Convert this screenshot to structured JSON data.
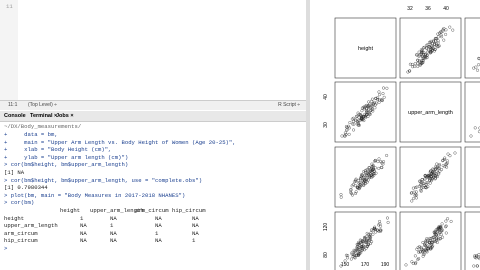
{
  "editor": {
    "line_number": "11"
  },
  "status_bar": {
    "position": "11:1",
    "scope": "(Top Level) ÷",
    "file_type": "R Script ÷"
  },
  "console": {
    "tabs": [
      "Console",
      "Terminal ×",
      "Jobs ×"
    ],
    "path": "~/DX/Body_measurements/",
    "lines": [
      "+     data = bm,",
      "+     main = \"Upper Arm Length vs. Body Height of Women (Age 20-25)\",",
      "+     xlab = \"Body Height (cm)\",",
      "+     ylab = \"Upper arm length (cm)\")",
      "> cor(bm$height, bm$upper_arm_length)",
      "[1] NA",
      "> cor(bm$height, bm$upper_arm_length, use = \"complete.obs\")",
      "[1] 0.7980344",
      "> plot(bm, main = \"Body Measures in 2017-2018 NHANES\")",
      "> cor(bm)"
    ],
    "table": {
      "header": [
        "height",
        "upper_arm_length",
        "arm_circum",
        "hip_circum"
      ],
      "rows": [
        [
          "height",
          1,
          "NA",
          "NA",
          "NA"
        ],
        [
          "upper_arm_length",
          "NA",
          1,
          "NA",
          "NA"
        ],
        [
          "arm_circum",
          "NA",
          "NA",
          1,
          "NA"
        ],
        [
          "hip_circum",
          "NA",
          "NA",
          "NA",
          1
        ]
      ]
    },
    "prompt": ">"
  },
  "plot": {
    "diagonal_labels": [
      "height",
      "upper_arm_length"
    ],
    "top_ticks": [
      32,
      36,
      40
    ],
    "left_ticks_row2": [
      40,
      30
    ],
    "left_ticks_row4": [
      120,
      80
    ],
    "bottom_ticks": [
      150,
      170,
      190
    ]
  }
}
